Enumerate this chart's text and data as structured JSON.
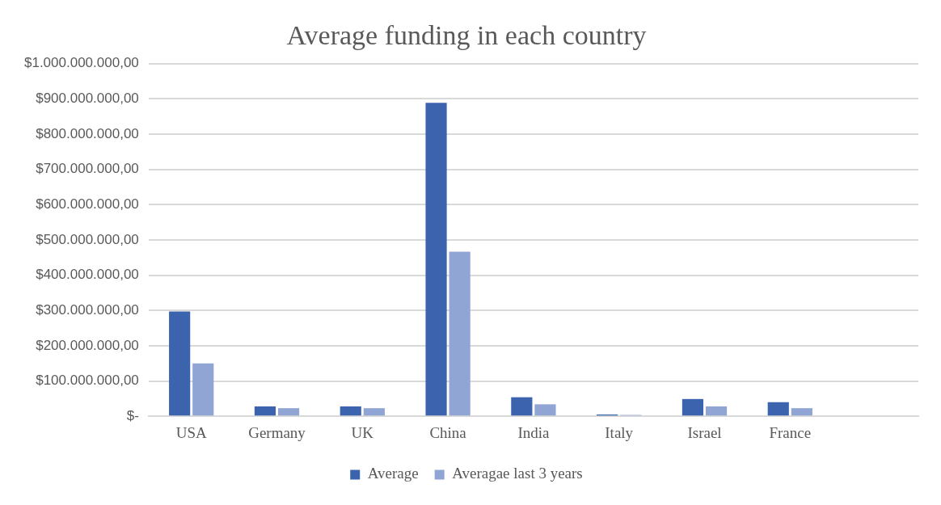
{
  "chart_data": {
    "type": "bar",
    "title": "Average funding in each country",
    "categories": [
      "USA",
      "Germany",
      "UK",
      "China",
      "India",
      "Italy",
      "Israel",
      "France",
      null
    ],
    "series": [
      {
        "name": "Average",
        "color": "#3c64ae",
        "values": [
          297000000,
          28000000,
          28000000,
          889000000,
          54000000,
          5000000,
          49000000,
          40000000,
          null
        ]
      },
      {
        "name": "Averagae last 3 years",
        "color": "#91a5d5",
        "values": [
          150000000,
          23000000,
          23000000,
          467000000,
          34000000,
          4000000,
          28000000,
          23000000,
          null
        ]
      }
    ],
    "ylim": [
      0,
      1000000000
    ],
    "yticks": [
      {
        "value": 0,
        "label": "$-"
      },
      {
        "value": 100000000,
        "label": "$100.000.000,00"
      },
      {
        "value": 200000000,
        "label": "$200.000.000,00"
      },
      {
        "value": 300000000,
        "label": "$300.000.000,00"
      },
      {
        "value": 400000000,
        "label": "$400.000.000,00"
      },
      {
        "value": 500000000,
        "label": "$500.000.000,00"
      },
      {
        "value": 600000000,
        "label": "$600.000.000,00"
      },
      {
        "value": 700000000,
        "label": "$700.000.000,00"
      },
      {
        "value": 800000000,
        "label": "$800.000.000,00"
      },
      {
        "value": 900000000,
        "label": "$900.000.000,00"
      },
      {
        "value": 1000000000,
        "label": "$1.000.000.000,00"
      }
    ],
    "grid": "y",
    "legend": "bottom"
  }
}
